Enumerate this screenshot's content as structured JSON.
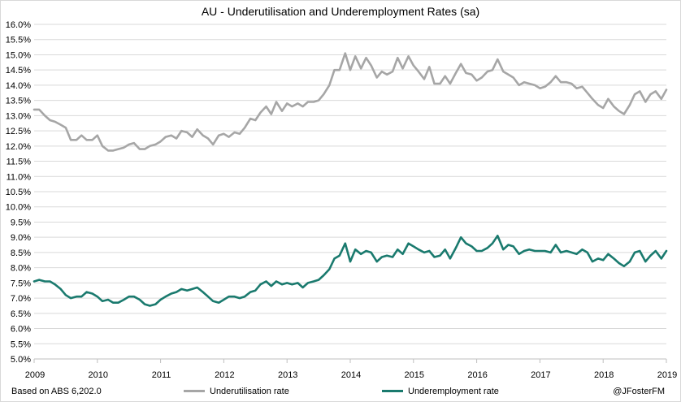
{
  "chart_data": {
    "type": "line",
    "title": "AU - Underutilisation and Underemployment Rates (sa)",
    "xlabel": "",
    "ylabel": "",
    "x_range": [
      2009.0,
      2019.0
    ],
    "ylim": [
      5.0,
      16.0
    ],
    "y_tick_step": 0.5,
    "y_tick_format": "percent_1dp",
    "x_tick_labels": [
      "2009",
      "2010",
      "2011",
      "2012",
      "2013",
      "2014",
      "2015",
      "2016",
      "2017",
      "2018",
      "2019"
    ],
    "grid": "horizontal",
    "legend_position": "bottom",
    "series": [
      {
        "name": "Underutilisation rate",
        "color": "#a6a6a6",
        "x": [
          2009.0,
          2009.08,
          2009.17,
          2009.25,
          2009.33,
          2009.42,
          2009.5,
          2009.58,
          2009.67,
          2009.75,
          2009.83,
          2009.92,
          2010.0,
          2010.08,
          2010.17,
          2010.25,
          2010.33,
          2010.42,
          2010.5,
          2010.58,
          2010.67,
          2010.75,
          2010.83,
          2010.92,
          2011.0,
          2011.08,
          2011.17,
          2011.25,
          2011.33,
          2011.42,
          2011.5,
          2011.58,
          2011.67,
          2011.75,
          2011.83,
          2011.92,
          2012.0,
          2012.08,
          2012.17,
          2012.25,
          2012.33,
          2012.42,
          2012.5,
          2012.58,
          2012.67,
          2012.75,
          2012.83,
          2012.92,
          2013.0,
          2013.08,
          2013.17,
          2013.25,
          2013.33,
          2013.42,
          2013.5,
          2013.58,
          2013.67,
          2013.75,
          2013.83,
          2013.92,
          2014.0,
          2014.08,
          2014.17,
          2014.25,
          2014.33,
          2014.42,
          2014.5,
          2014.58,
          2014.67,
          2014.75,
          2014.83,
          2014.92,
          2015.0,
          2015.08,
          2015.17,
          2015.25,
          2015.33,
          2015.42,
          2015.5,
          2015.58,
          2015.67,
          2015.75,
          2015.83,
          2015.92,
          2016.0,
          2016.08,
          2016.17,
          2016.25,
          2016.33,
          2016.42,
          2016.5,
          2016.58,
          2016.67,
          2016.75,
          2016.83,
          2016.92,
          2017.0,
          2017.08,
          2017.17,
          2017.25,
          2017.33,
          2017.42,
          2017.5,
          2017.58,
          2017.67,
          2017.75,
          2017.83,
          2017.92,
          2018.0,
          2018.08,
          2018.17,
          2018.25,
          2018.33,
          2018.42,
          2018.5,
          2018.58,
          2018.67,
          2018.75,
          2018.83,
          2018.92,
          2019.0
        ],
        "values": [
          13.2,
          13.2,
          13.0,
          12.85,
          12.8,
          12.7,
          12.6,
          12.2,
          12.2,
          12.35,
          12.2,
          12.2,
          12.35,
          12.0,
          11.85,
          11.85,
          11.9,
          11.95,
          12.05,
          12.1,
          11.9,
          11.9,
          12.0,
          12.05,
          12.15,
          12.3,
          12.35,
          12.25,
          12.5,
          12.45,
          12.3,
          12.55,
          12.35,
          12.25,
          12.05,
          12.35,
          12.4,
          12.3,
          12.45,
          12.4,
          12.6,
          12.9,
          12.85,
          13.1,
          13.3,
          13.05,
          13.45,
          13.15,
          13.4,
          13.3,
          13.4,
          13.3,
          13.45,
          13.45,
          13.5,
          13.7,
          14.0,
          14.5,
          14.5,
          15.05,
          14.5,
          14.95,
          14.55,
          14.9,
          14.65,
          14.25,
          14.45,
          14.35,
          14.45,
          14.9,
          14.55,
          14.95,
          14.65,
          14.45,
          14.2,
          14.6,
          14.05,
          14.05,
          14.3,
          14.05,
          14.4,
          14.7,
          14.4,
          14.35,
          14.15,
          14.25,
          14.45,
          14.5,
          14.85,
          14.45,
          14.35,
          14.25,
          14.0,
          14.1,
          14.05,
          14.0,
          13.9,
          13.95,
          14.1,
          14.3,
          14.1,
          14.1,
          14.05,
          13.9,
          13.95,
          13.75,
          13.55,
          13.35,
          13.25,
          13.55,
          13.3,
          13.15,
          13.05,
          13.35,
          13.7,
          13.8,
          13.45,
          13.7,
          13.8,
          13.55,
          13.85
        ]
      },
      {
        "name": "Underemployment rate",
        "color": "#1a7a6e",
        "x": [
          2009.0,
          2009.08,
          2009.17,
          2009.25,
          2009.33,
          2009.42,
          2009.5,
          2009.58,
          2009.67,
          2009.75,
          2009.83,
          2009.92,
          2010.0,
          2010.08,
          2010.17,
          2010.25,
          2010.33,
          2010.42,
          2010.5,
          2010.58,
          2010.67,
          2010.75,
          2010.83,
          2010.92,
          2011.0,
          2011.08,
          2011.17,
          2011.25,
          2011.33,
          2011.42,
          2011.5,
          2011.58,
          2011.67,
          2011.75,
          2011.83,
          2011.92,
          2012.0,
          2012.08,
          2012.17,
          2012.25,
          2012.33,
          2012.42,
          2012.5,
          2012.58,
          2012.67,
          2012.75,
          2012.83,
          2012.92,
          2013.0,
          2013.08,
          2013.17,
          2013.25,
          2013.33,
          2013.42,
          2013.5,
          2013.58,
          2013.67,
          2013.75,
          2013.83,
          2013.92,
          2014.0,
          2014.08,
          2014.17,
          2014.25,
          2014.33,
          2014.42,
          2014.5,
          2014.58,
          2014.67,
          2014.75,
          2014.83,
          2014.92,
          2015.0,
          2015.08,
          2015.17,
          2015.25,
          2015.33,
          2015.42,
          2015.5,
          2015.58,
          2015.67,
          2015.75,
          2015.83,
          2015.92,
          2016.0,
          2016.08,
          2016.17,
          2016.25,
          2016.33,
          2016.42,
          2016.5,
          2016.58,
          2016.67,
          2016.75,
          2016.83,
          2016.92,
          2017.0,
          2017.08,
          2017.17,
          2017.25,
          2017.33,
          2017.42,
          2017.5,
          2017.58,
          2017.67,
          2017.75,
          2017.83,
          2017.92,
          2018.0,
          2018.08,
          2018.17,
          2018.25,
          2018.33,
          2018.42,
          2018.5,
          2018.58,
          2018.67,
          2018.75,
          2018.83,
          2018.92,
          2019.0
        ],
        "values": [
          7.55,
          7.6,
          7.55,
          7.55,
          7.45,
          7.3,
          7.1,
          7.0,
          7.05,
          7.05,
          7.2,
          7.15,
          7.05,
          6.9,
          6.95,
          6.85,
          6.85,
          6.95,
          7.05,
          7.05,
          6.95,
          6.8,
          6.75,
          6.8,
          6.95,
          7.05,
          7.15,
          7.2,
          7.3,
          7.25,
          7.3,
          7.35,
          7.2,
          7.05,
          6.9,
          6.85,
          6.95,
          7.05,
          7.05,
          7.0,
          7.05,
          7.2,
          7.25,
          7.45,
          7.55,
          7.4,
          7.55,
          7.45,
          7.5,
          7.45,
          7.5,
          7.35,
          7.5,
          7.55,
          7.6,
          7.75,
          7.95,
          8.3,
          8.4,
          8.8,
          8.2,
          8.6,
          8.45,
          8.55,
          8.5,
          8.2,
          8.35,
          8.4,
          8.35,
          8.6,
          8.45,
          8.8,
          8.7,
          8.6,
          8.5,
          8.55,
          8.35,
          8.4,
          8.6,
          8.3,
          8.65,
          9.0,
          8.8,
          8.7,
          8.55,
          8.55,
          8.65,
          8.8,
          9.05,
          8.6,
          8.75,
          8.7,
          8.45,
          8.55,
          8.6,
          8.55,
          8.55,
          8.55,
          8.5,
          8.75,
          8.5,
          8.55,
          8.5,
          8.45,
          8.6,
          8.5,
          8.2,
          8.3,
          8.25,
          8.45,
          8.3,
          8.15,
          8.05,
          8.2,
          8.5,
          8.55,
          8.2,
          8.4,
          8.55,
          8.3,
          8.55
        ]
      }
    ]
  },
  "source_note": "Based on ABS 6,202.0",
  "credit_note": "@JFosterFM"
}
